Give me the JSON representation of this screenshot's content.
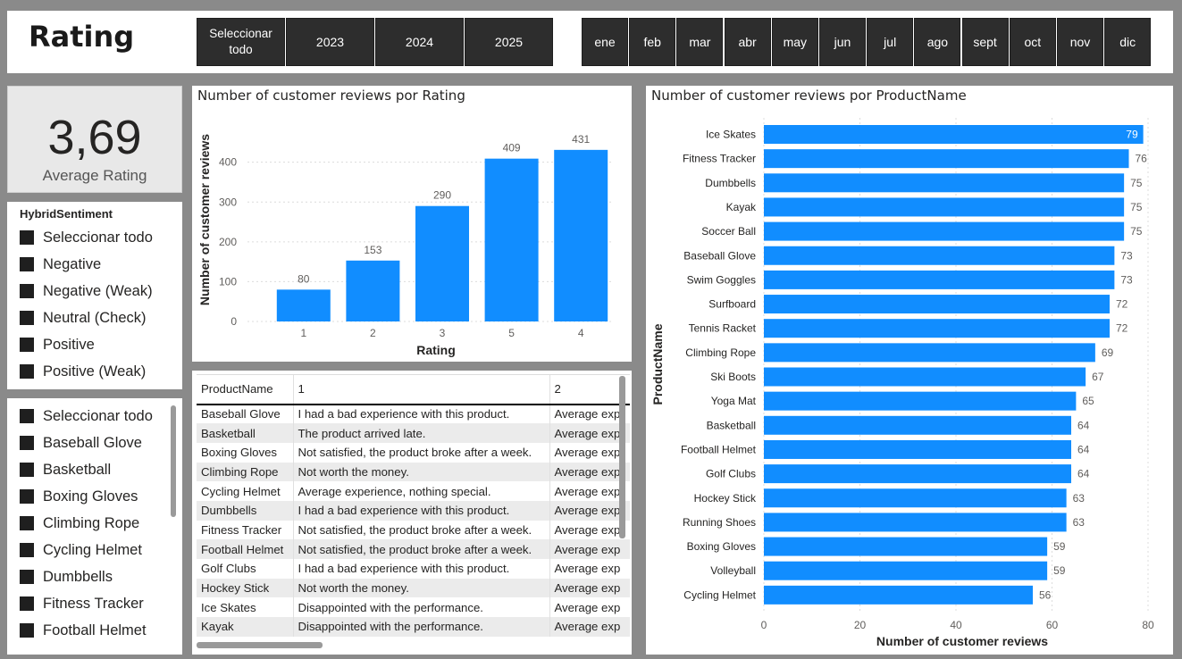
{
  "header": {
    "title": "Rating",
    "years": [
      "Seleccionar todo",
      "2023",
      "2024",
      "2025"
    ],
    "months": [
      "ene",
      "feb",
      "mar",
      "abr",
      "may",
      "jun",
      "jul",
      "ago",
      "sept",
      "oct",
      "nov",
      "dic"
    ]
  },
  "kpi": {
    "value": "3,69",
    "label": "Average Rating"
  },
  "sentiment_slicer": {
    "title": "HybridSentiment",
    "items": [
      "Seleccionar todo",
      "Negative",
      "Negative (Weak)",
      "Neutral (Check)",
      "Positive",
      "Positive (Weak)"
    ]
  },
  "product_slicer": {
    "items": [
      "Seleccionar todo",
      "Baseball Glove",
      "Basketball",
      "Boxing Gloves",
      "Climbing Rope",
      "Cycling Helmet",
      "Dumbbells",
      "Fitness Tracker",
      "Football Helmet"
    ]
  },
  "rating_chart": {
    "title": "Number of customer reviews por Rating",
    "chart_data": {
      "type": "bar",
      "categories": [
        "1",
        "2",
        "3",
        "5",
        "4"
      ],
      "values": [
        80,
        153,
        290,
        409,
        431
      ],
      "xlabel": "Rating",
      "ylabel": "Number of customer reviews",
      "yticks": [
        "0",
        "100",
        "200",
        "300",
        "400"
      ],
      "ylim": [
        0,
        480
      ],
      "color": "#118DFF"
    }
  },
  "product_chart": {
    "title": "Number of customer reviews por ProductName",
    "chart_data": {
      "type": "bar",
      "orientation": "horizontal",
      "categories": [
        "Ice Skates",
        "Fitness Tracker",
        "Dumbbells",
        "Kayak",
        "Soccer Ball",
        "Baseball Glove",
        "Swim Goggles",
        "Surfboard",
        "Tennis Racket",
        "Climbing Rope",
        "Ski Boots",
        "Yoga Mat",
        "Basketball",
        "Football Helmet",
        "Golf Clubs",
        "Hockey Stick",
        "Running Shoes",
        "Boxing Gloves",
        "Volleyball",
        "Cycling Helmet"
      ],
      "values": [
        79,
        76,
        75,
        75,
        75,
        73,
        73,
        72,
        72,
        69,
        67,
        65,
        64,
        64,
        64,
        63,
        63,
        59,
        59,
        56
      ],
      "xlabel": "Number of customer reviews",
      "ylabel": "ProductName",
      "xticks": [
        "0",
        "20",
        "40",
        "60",
        "80"
      ],
      "xlim": [
        0,
        80
      ],
      "color": "#118DFF"
    }
  },
  "table": {
    "headers": [
      "ProductName",
      "1",
      "2"
    ],
    "rows": [
      [
        "Baseball Glove",
        "I had a bad experience with this product.",
        "Average exp"
      ],
      [
        "Basketball",
        "The product arrived late.",
        "Average exp"
      ],
      [
        "Boxing Gloves",
        "Not satisfied, the product broke after a week.",
        "Average exp"
      ],
      [
        "Climbing Rope",
        "Not worth the money.",
        "Average exp"
      ],
      [
        "Cycling Helmet",
        "Average experience, nothing special.",
        "Average exp"
      ],
      [
        "Dumbbells",
        "I had a bad experience with this product.",
        "Average exp"
      ],
      [
        "Fitness Tracker",
        "Not satisfied, the product broke after a week.",
        "Average exp"
      ],
      [
        "Football Helmet",
        "Not satisfied, the product broke after a week.",
        "Average exp"
      ],
      [
        "Golf Clubs",
        "I had a bad experience with this product.",
        "Average exp"
      ],
      [
        "Hockey Stick",
        "Not worth the money.",
        "Average exp"
      ],
      [
        "Ice Skates",
        "Disappointed with the performance.",
        "Average exp"
      ],
      [
        "Kayak",
        "Disappointed with the performance.",
        "Average exp"
      ]
    ]
  }
}
